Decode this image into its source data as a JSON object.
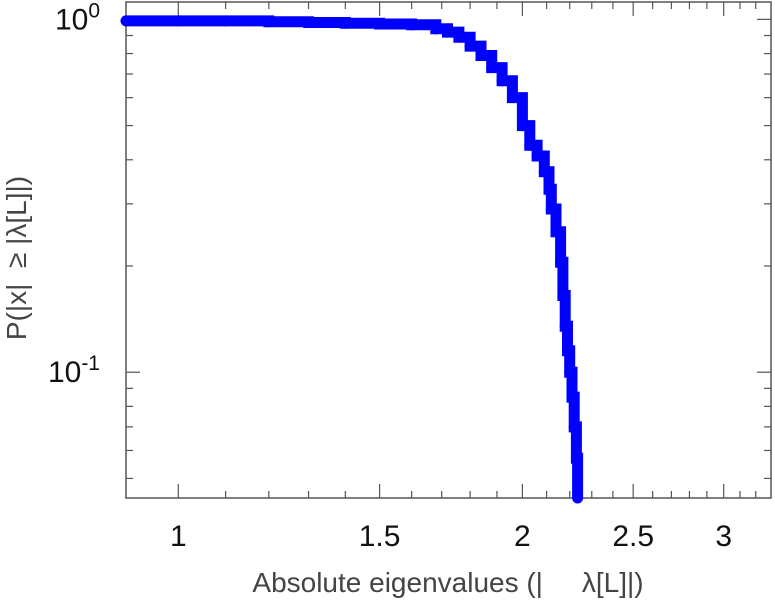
{
  "chart_data": {
    "type": "line",
    "title": "",
    "xlabel": "Absolute eigenvalues (|     λ[L]|)",
    "ylabel": "P(|x|  ≥ |λ[L]|)",
    "x_scale": "log",
    "y_scale": "log",
    "xlim": [
      0.9,
      3.3
    ],
    "ylim": [
      0.044,
      1.12
    ],
    "x_ticks": [
      {
        "value": 1,
        "label": "1"
      },
      {
        "value": 1.5,
        "label": "1.5"
      },
      {
        "value": 2,
        "label": "2"
      },
      {
        "value": 2.5,
        "label": "2.5"
      },
      {
        "value": 3,
        "label": "3"
      }
    ],
    "y_ticks": [
      {
        "value": 1,
        "base": "10",
        "exponent": "0"
      },
      {
        "value": 0.1,
        "base": "10",
        "exponent": "-1"
      }
    ],
    "grid": false,
    "series_color": "#0000ff",
    "series": [
      {
        "x": [
          0.9,
          1.0,
          1.1,
          1.2,
          1.3,
          1.4,
          1.5,
          1.6,
          1.68,
          1.72,
          1.76,
          1.8,
          1.84,
          1.88,
          1.92,
          1.96,
          2.0,
          2.03,
          2.06,
          2.09,
          2.11,
          2.12,
          2.14,
          2.16,
          2.17,
          2.18,
          2.19,
          2.2,
          2.21,
          2.22,
          2.23,
          2.235
        ],
        "y": [
          0.99,
          0.99,
          0.99,
          0.985,
          0.98,
          0.975,
          0.97,
          0.965,
          0.94,
          0.92,
          0.89,
          0.84,
          0.79,
          0.73,
          0.67,
          0.6,
          0.5,
          0.44,
          0.41,
          0.37,
          0.33,
          0.29,
          0.25,
          0.205,
          0.165,
          0.135,
          0.115,
          0.1,
          0.085,
          0.07,
          0.057,
          0.044
        ]
      }
    ]
  }
}
